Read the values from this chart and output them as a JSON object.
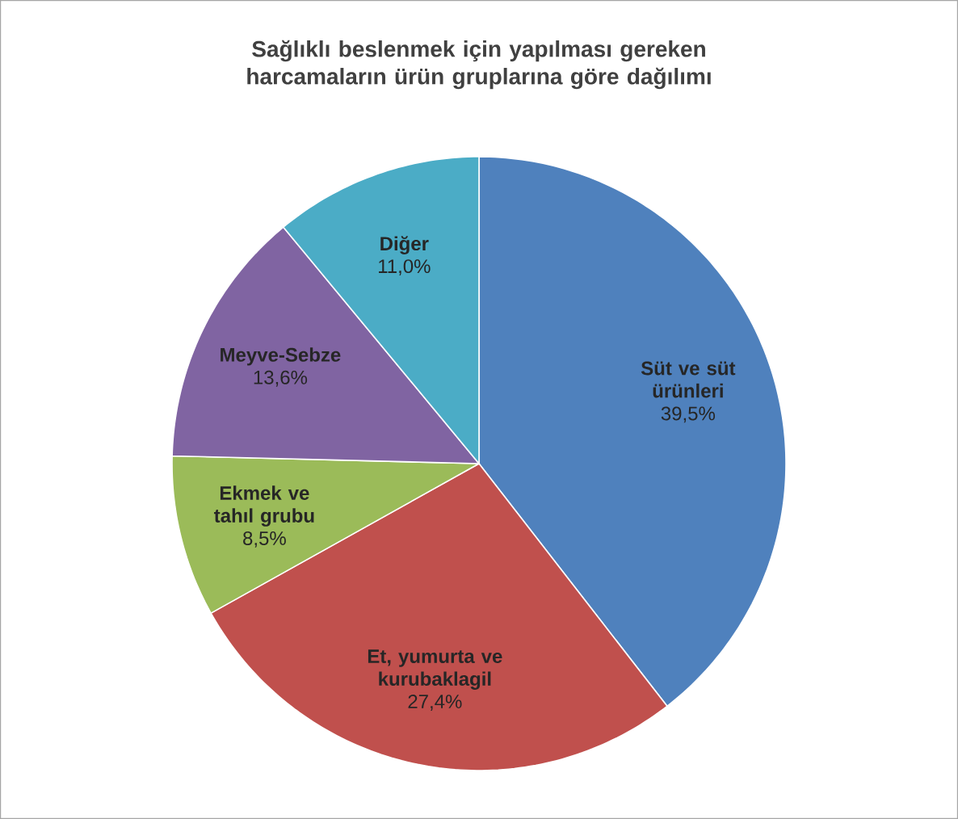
{
  "chart_data": {
    "type": "pie",
    "title": "Sağlıklı beslenmek için yapılması gereken harcamaların ürün gruplarına göre dağılımı",
    "categories": [
      "Süt ve süt ürünleri",
      "Et, yumurta ve kurubaklagil",
      "Ekmek ve tahıl grubu",
      "Meyve-Sebze",
      "Diğer"
    ],
    "values": [
      39.5,
      27.4,
      8.5,
      13.6,
      11.0
    ],
    "value_labels": [
      "39,5%",
      "27,4%",
      "8,5%",
      "13,6%",
      "11,0%"
    ],
    "colors": [
      "#4f81bd",
      "#c0504d",
      "#9bbb59",
      "#8064a2",
      "#4bacc6"
    ]
  }
}
